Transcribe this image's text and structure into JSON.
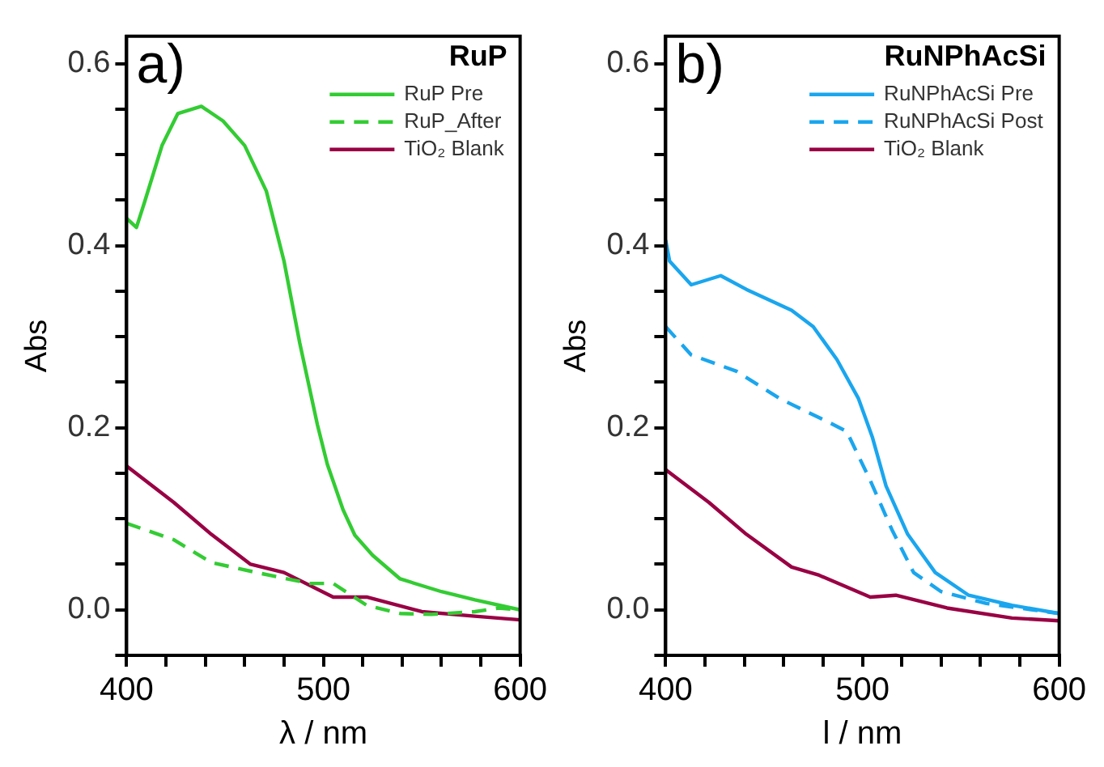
{
  "chart_data": [
    {
      "type": "line",
      "title": "RuP",
      "annotations": [
        "a)"
      ],
      "xlabel": "λ / nm",
      "ylabel": "Abs",
      "legend": "top right",
      "xlim": [
        400,
        600
      ],
      "xticks": [
        400,
        {
          "value": 420,
          "label": null
        },
        {
          "value": 440,
          "label": null
        },
        {
          "value": 460,
          "label": null
        },
        {
          "value": 480,
          "label": null
        },
        500,
        {
          "value": 520,
          "label": null
        },
        {
          "value": 540,
          "label": null
        },
        {
          "value": 560,
          "label": null
        },
        {
          "value": 580,
          "label": null
        },
        600
      ],
      "ylim": [
        -0.05,
        0.63
      ],
      "yticks": [
        {
          "value": -0.05,
          "label": null
        },
        {
          "value": 0,
          "label": "0.0"
        },
        {
          "value": 0.05,
          "label": null
        },
        {
          "value": 0.1,
          "label": null
        },
        {
          "value": 0.15,
          "label": null
        },
        {
          "value": 0.2,
          "label": "0.2"
        },
        {
          "value": 0.25,
          "label": null
        },
        {
          "value": 0.3,
          "label": null
        },
        {
          "value": 0.35,
          "label": null
        },
        {
          "value": 0.4,
          "label": "0.4"
        },
        {
          "value": 0.45,
          "label": null
        },
        {
          "value": 0.5,
          "label": null
        },
        {
          "value": 0.55,
          "label": null
        },
        {
          "value": 0.6,
          "label": "0.6"
        }
      ],
      "series": [
        {
          "name": "RuP Pre",
          "color": "#33cc33",
          "line_style": "solid",
          "x": [
            400,
            405,
            409,
            418,
            426,
            438,
            449,
            460,
            471,
            480,
            488,
            497,
            502,
            510,
            516,
            525,
            539,
            560,
            577,
            600
          ],
          "values": [
            0.43,
            0.42,
            0.447,
            0.51,
            0.545,
            0.553,
            0.537,
            0.51,
            0.46,
            0.383,
            0.293,
            0.203,
            0.16,
            0.11,
            0.082,
            0.06,
            0.034,
            0.02,
            0.011,
            0.0
          ]
        },
        {
          "name": "RuP_After",
          "color": "#33cc33",
          "line_style": "dashed",
          "x": [
            400,
            424,
            443,
            466,
            493,
            505,
            522,
            539,
            555,
            577,
            589,
            600
          ],
          "values": [
            0.095,
            0.077,
            0.052,
            0.041,
            0.029,
            0.029,
            0.005,
            -0.004,
            -0.005,
            -0.002,
            0.002,
            0.0
          ]
        },
        {
          "name": "TiO₂ Blank",
          "color": "#990044",
          "line_style": "solid",
          "x": [
            400,
            424,
            443,
            463,
            480,
            505,
            522,
            550,
            577,
            600
          ],
          "values": [
            0.158,
            0.118,
            0.083,
            0.05,
            0.041,
            0.014,
            0.014,
            -0.002,
            -0.007,
            -0.011
          ]
        }
      ]
    },
    {
      "type": "line",
      "title": "RuNPhAcSi",
      "annotations": [
        "b)"
      ],
      "xlabel": "l / nm",
      "ylabel": "Abs",
      "legend": "top right",
      "xlim": [
        400,
        600
      ],
      "xticks": [
        400,
        {
          "value": 420,
          "label": null
        },
        {
          "value": 440,
          "label": null
        },
        {
          "value": 460,
          "label": null
        },
        {
          "value": 480,
          "label": null
        },
        500,
        {
          "value": 520,
          "label": null
        },
        {
          "value": 540,
          "label": null
        },
        {
          "value": 560,
          "label": null
        },
        {
          "value": 580,
          "label": null
        },
        600
      ],
      "ylim": [
        -0.05,
        0.63
      ],
      "yticks": [
        {
          "value": -0.05,
          "label": null
        },
        {
          "value": 0,
          "label": "0.0"
        },
        {
          "value": 0.05,
          "label": null
        },
        {
          "value": 0.1,
          "label": null
        },
        {
          "value": 0.15,
          "label": null
        },
        {
          "value": 0.2,
          "label": "0.2"
        },
        {
          "value": 0.25,
          "label": null
        },
        {
          "value": 0.3,
          "label": null
        },
        {
          "value": 0.35,
          "label": null
        },
        {
          "value": 0.4,
          "label": "0.4"
        },
        {
          "value": 0.45,
          "label": null
        },
        {
          "value": 0.5,
          "label": null
        },
        {
          "value": 0.55,
          "label": null
        },
        {
          "value": 0.6,
          "label": "0.6"
        }
      ],
      "series": [
        {
          "name": "RuNPhAcSi Pre",
          "color": "#1aa6ee",
          "line_style": "solid",
          "x": [
            400,
            402,
            413,
            428,
            441,
            464,
            475,
            487,
            498,
            505,
            512,
            523,
            537,
            554,
            576,
            600
          ],
          "values": [
            0.406,
            0.383,
            0.357,
            0.367,
            0.352,
            0.329,
            0.311,
            0.275,
            0.232,
            0.19,
            0.136,
            0.083,
            0.041,
            0.016,
            0.005,
            -0.004
          ]
        },
        {
          "name": "RuNPhAcSi Post",
          "color": "#1aa6ee",
          "line_style": "dashed",
          "x": [
            400,
            413,
            436,
            458,
            481,
            492,
            504,
            515,
            526,
            540,
            563,
            600
          ],
          "values": [
            0.311,
            0.28,
            0.262,
            0.232,
            0.208,
            0.196,
            0.142,
            0.088,
            0.041,
            0.02,
            0.007,
            -0.004
          ]
        },
        {
          "name": "TiO₂ Blank",
          "color": "#990044",
          "line_style": "solid",
          "x": [
            400,
            422,
            441,
            464,
            478,
            504,
            517,
            543,
            576,
            600
          ],
          "values": [
            0.154,
            0.118,
            0.083,
            0.047,
            0.038,
            0.014,
            0.016,
            0.002,
            -0.009,
            -0.012
          ]
        }
      ]
    }
  ]
}
